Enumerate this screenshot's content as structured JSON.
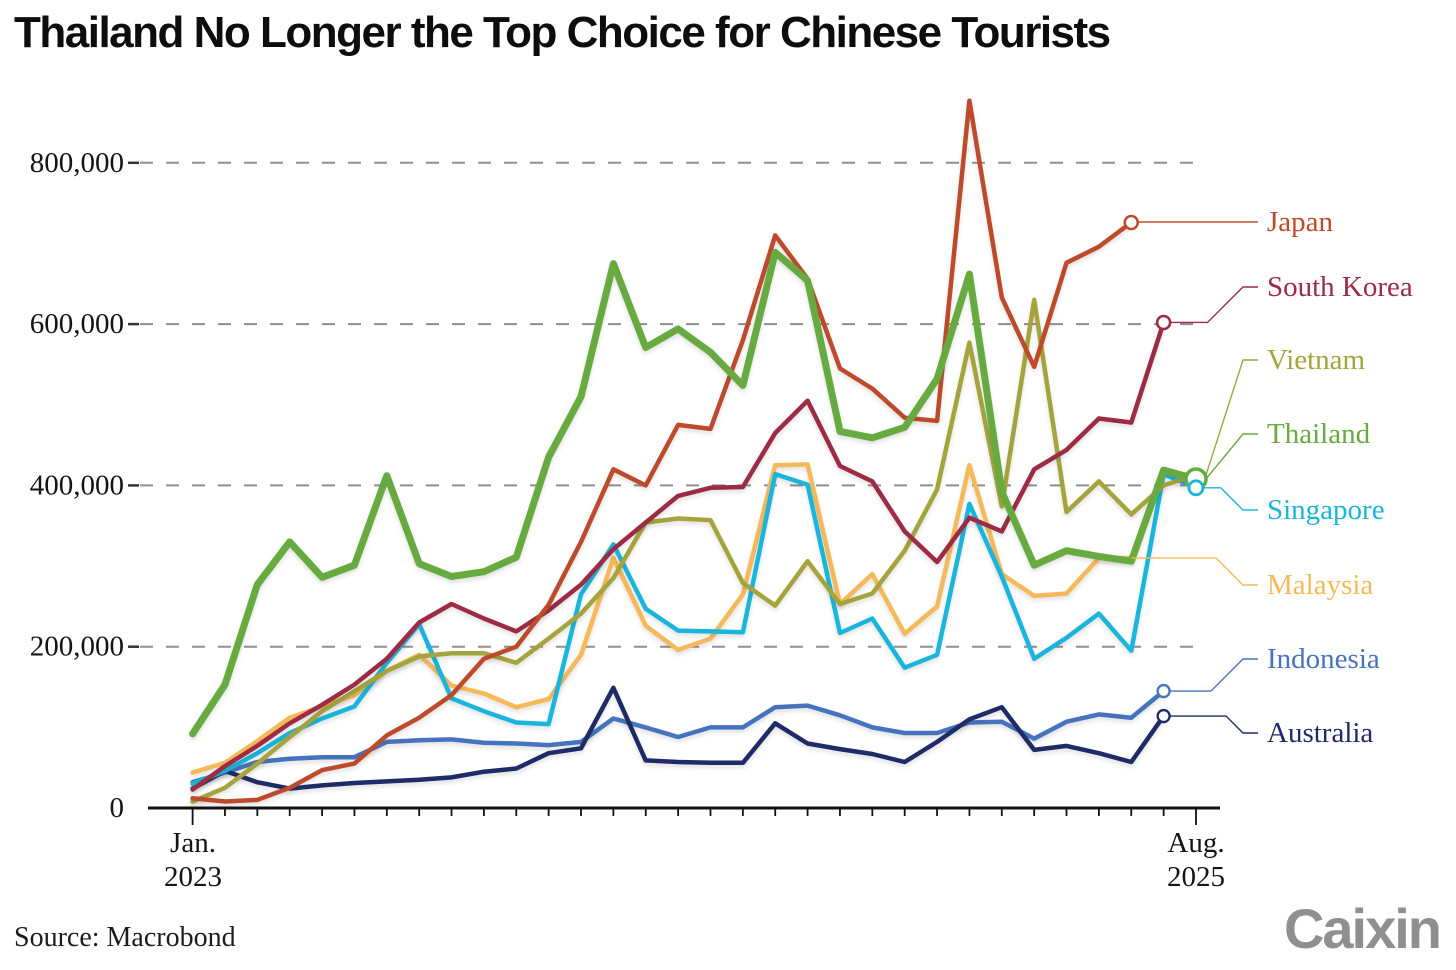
{
  "chart_data": {
    "type": "line",
    "title": "Thailand No Longer the Top Choice for Chinese Tourists",
    "subtitle": "",
    "xlabel": "",
    "ylabel": "",
    "grid": "horizontal-dashed",
    "legend_position": "right",
    "ylim": [
      0,
      900000
    ],
    "y_axis": {
      "ticks": [
        0,
        200000,
        400000,
        600000,
        800000
      ],
      "tick_labels": [
        "0",
        "200,000",
        "400,000",
        "600,000",
        "800,000"
      ]
    },
    "x_axis": {
      "start_label_line1": "Jan.",
      "start_label_line2": "2023",
      "end_label_line1": "Aug.",
      "end_label_line2": "2025",
      "months": [
        "2023-01",
        "2023-02",
        "2023-03",
        "2023-04",
        "2023-05",
        "2023-06",
        "2023-07",
        "2023-08",
        "2023-09",
        "2023-10",
        "2023-11",
        "2023-12",
        "2024-01",
        "2024-02",
        "2024-03",
        "2024-04",
        "2024-05",
        "2024-06",
        "2024-07",
        "2024-08",
        "2024-09",
        "2024-10",
        "2024-11",
        "2024-12",
        "2025-01",
        "2025-02",
        "2025-03",
        "2025-04",
        "2025-05",
        "2025-06",
        "2025-07",
        "2025-08"
      ]
    },
    "series": [
      {
        "name": "Japan",
        "color": "#bd4b2b",
        "marker": true,
        "marker_r": 6.5,
        "marker_w": 2.5,
        "width": 4.5,
        "values": [
          12000,
          8000,
          10000,
          25000,
          47000,
          55000,
          90000,
          112000,
          140000,
          185000,
          200000,
          252000,
          330000,
          420000,
          400000,
          475000,
          470000,
          580000,
          710000,
          656000,
          545000,
          520000,
          484000,
          480000,
          877000,
          633000,
          547000,
          676000,
          696000,
          726000
        ]
      },
      {
        "name": "South Korea",
        "color": "#9c2b43",
        "marker": true,
        "marker_r": 6.5,
        "marker_w": 2.5,
        "width": 4.5,
        "values": [
          23000,
          52000,
          77000,
          105000,
          128000,
          153000,
          185000,
          230000,
          253000,
          235000,
          219000,
          245000,
          277000,
          321000,
          354000,
          387000,
          397000,
          398000,
          465000,
          505000,
          424000,
          405000,
          343000,
          305000,
          360000,
          343000,
          420000,
          444000,
          483000,
          478000,
          602000
        ]
      },
      {
        "name": "Vietnam",
        "color": "#a5a43c",
        "marker": false,
        "marker_r": 0,
        "marker_w": 0,
        "width": 4.5,
        "values": [
          8000,
          25000,
          55000,
          88000,
          120000,
          145000,
          170000,
          188000,
          192000,
          192000,
          180000,
          210000,
          241000,
          285000,
          354000,
          359000,
          357000,
          279000,
          251000,
          306000,
          253000,
          266000,
          319000,
          395000,
          577000,
          374000,
          630000,
          367000,
          405000,
          364000,
          400000,
          413000
        ]
      },
      {
        "name": "Thailand",
        "color": "#67aa3f",
        "marker": true,
        "marker_r": 10,
        "marker_w": 3.5,
        "width": 7,
        "values": [
          92000,
          153000,
          277000,
          330000,
          286000,
          301000,
          412000,
          303000,
          287000,
          293000,
          311000,
          435000,
          510000,
          675000,
          571000,
          594000,
          565000,
          524000,
          689000,
          654000,
          467000,
          459000,
          472000,
          532000,
          662000,
          392000,
          301000,
          319000,
          312000,
          306000,
          419000,
          408000
        ]
      },
      {
        "name": "Singapore",
        "color": "#19b5dc",
        "marker": true,
        "marker_r": 7,
        "marker_w": 2.8,
        "width": 4.5,
        "values": [
          30000,
          46000,
          68000,
          93000,
          111000,
          126000,
          180000,
          228000,
          136000,
          120000,
          106000,
          104000,
          265000,
          327000,
          247000,
          220000,
          219000,
          218000,
          414000,
          401000,
          217000,
          235000,
          174000,
          190000,
          377000,
          287000,
          185000,
          211000,
          241000,
          195000,
          414000,
          397000
        ]
      },
      {
        "name": "Malaysia",
        "color": "#f6b95a",
        "marker": false,
        "marker_r": 0,
        "marker_w": 0,
        "width": 4.5,
        "values": [
          44000,
          56000,
          83000,
          112000,
          126000,
          140000,
          170000,
          190000,
          152000,
          142000,
          125000,
          135000,
          190000,
          310000,
          226000,
          196000,
          210000,
          265000,
          425000,
          426000,
          253000,
          290000,
          216000,
          250000,
          425000,
          290000,
          263000,
          266000,
          310000,
          310000
        ]
      },
      {
        "name": "Indonesia",
        "color": "#4673bd",
        "marker": true,
        "marker_r": 6,
        "marker_w": 2.3,
        "width": 4.5,
        "values": [
          32000,
          44000,
          57000,
          61000,
          63000,
          63000,
          82000,
          84000,
          85000,
          81000,
          80000,
          78000,
          82000,
          111000,
          100000,
          88000,
          100000,
          100000,
          125000,
          127000,
          115000,
          100000,
          93000,
          93000,
          106000,
          107000,
          86000,
          107000,
          116000,
          112000,
          145000
        ]
      },
      {
        "name": "Australia",
        "color": "#1e2b67",
        "marker": true,
        "marker_r": 6,
        "marker_w": 2.3,
        "width": 4.5,
        "values": [
          24000,
          46000,
          32000,
          24000,
          28000,
          31000,
          33000,
          35000,
          38000,
          45000,
          49000,
          68000,
          74000,
          149000,
          59000,
          57000,
          56000,
          56000,
          105000,
          80000,
          73000,
          67000,
          57000,
          82000,
          110000,
          125000,
          72000,
          77000,
          68000,
          57000,
          114000
        ]
      }
    ]
  },
  "footer": {
    "source": "Source: Macrobond",
    "logo": "Caixin"
  }
}
